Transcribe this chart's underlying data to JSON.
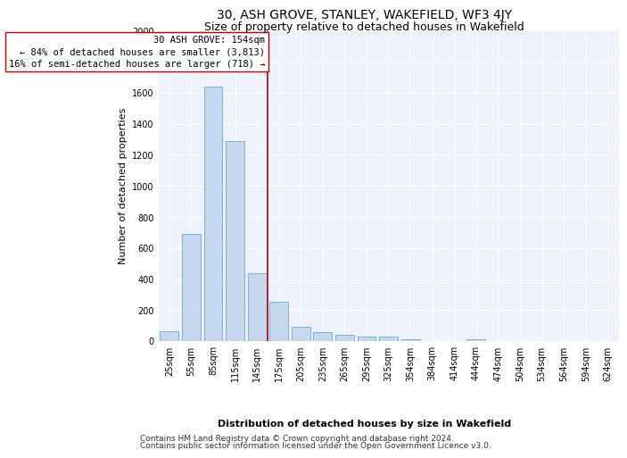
{
  "title": "30, ASH GROVE, STANLEY, WAKEFIELD, WF3 4JY",
  "subtitle": "Size of property relative to detached houses in Wakefield",
  "xlabel": "Distribution of detached houses by size in Wakefield",
  "ylabel": "Number of detached properties",
  "footnote1": "Contains HM Land Registry data © Crown copyright and database right 2024.",
  "footnote2": "Contains public sector information licensed under the Open Government Licence v3.0.",
  "annotation_line1": "30 ASH GROVE: 154sqm",
  "annotation_line2": "← 84% of detached houses are smaller (3,813)",
  "annotation_line3": "16% of semi-detached houses are larger (718) →",
  "bar_color": "#c5d8f0",
  "bar_edge_color": "#6aaad4",
  "vline_color": "#bb0000",
  "annotation_box_color": "#ffffff",
  "annotation_box_edge": "#bb0000",
  "background_color": "#eef2fc",
  "categories": [
    "25sqm",
    "55sqm",
    "85sqm",
    "115sqm",
    "145sqm",
    "175sqm",
    "205sqm",
    "235sqm",
    "265sqm",
    "295sqm",
    "325sqm",
    "354sqm",
    "384sqm",
    "414sqm",
    "444sqm",
    "474sqm",
    "504sqm",
    "534sqm",
    "564sqm",
    "594sqm",
    "624sqm"
  ],
  "values": [
    65,
    690,
    1640,
    1290,
    435,
    255,
    90,
    55,
    40,
    28,
    28,
    13,
    0,
    0,
    13,
    0,
    0,
    0,
    0,
    0,
    0
  ],
  "vline_x": 4.5,
  "ylim": [
    0,
    2000
  ],
  "yticks": [
    0,
    200,
    400,
    600,
    800,
    1000,
    1200,
    1400,
    1600,
    1800,
    2000
  ],
  "title_fontsize": 10,
  "subtitle_fontsize": 9,
  "axis_label_fontsize": 8,
  "tick_fontsize": 7,
  "annotation_fontsize": 7.5,
  "footnote_fontsize": 6.5
}
